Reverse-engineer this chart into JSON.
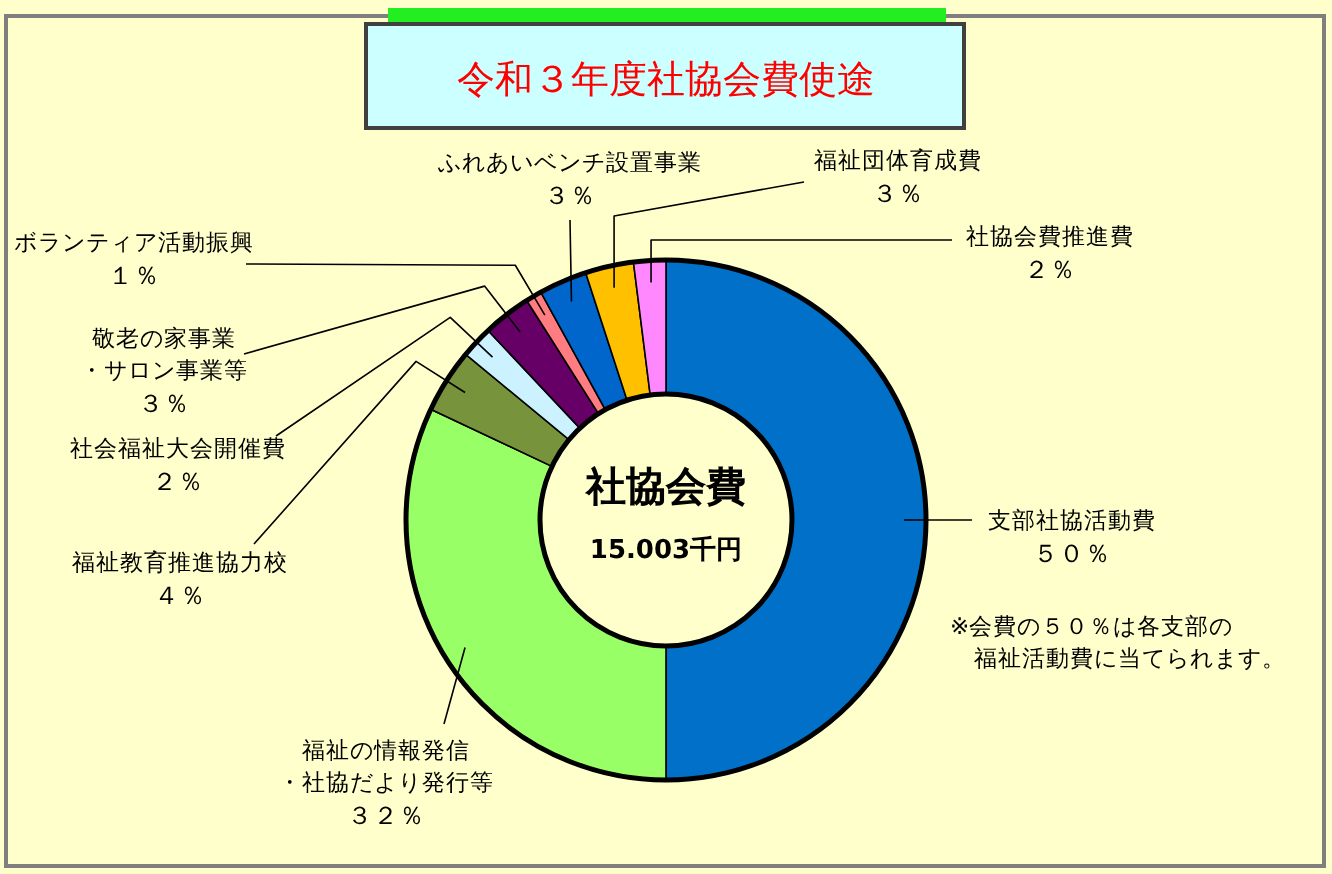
{
  "chart_data": {
    "type": "donut",
    "title": "令和３年度社協会費使途",
    "categories": [
      "支部社協活動費",
      "福祉の情報発信・社協だより発行等",
      "福祉教育推進協力校",
      "社会福祉大会開催費",
      "敬老の家事業・サロン事業等",
      "ボランティア活動振興",
      "ふれあいベンチ設置事業",
      "福祉団体育成費",
      "社協会費推進費"
    ],
    "values": [
      50,
      32,
      4,
      2,
      3,
      1,
      3,
      3,
      2
    ],
    "colors": [
      "#0070c8",
      "#99ff66",
      "#77933c",
      "#ccf2ff",
      "#660066",
      "#ff7c80",
      "#0066cc",
      "#ffc000",
      "#ff88ff"
    ],
    "value_labels": [
      "５０％",
      "３２％",
      "４％",
      "２％",
      "３％",
      "１％",
      "３％",
      "３％",
      "２％"
    ],
    "annotations": [
      "社協会費",
      "15.003千円",
      "※会費の５０％は各支部の福祉活動費に当てられます。"
    ]
  }
}
